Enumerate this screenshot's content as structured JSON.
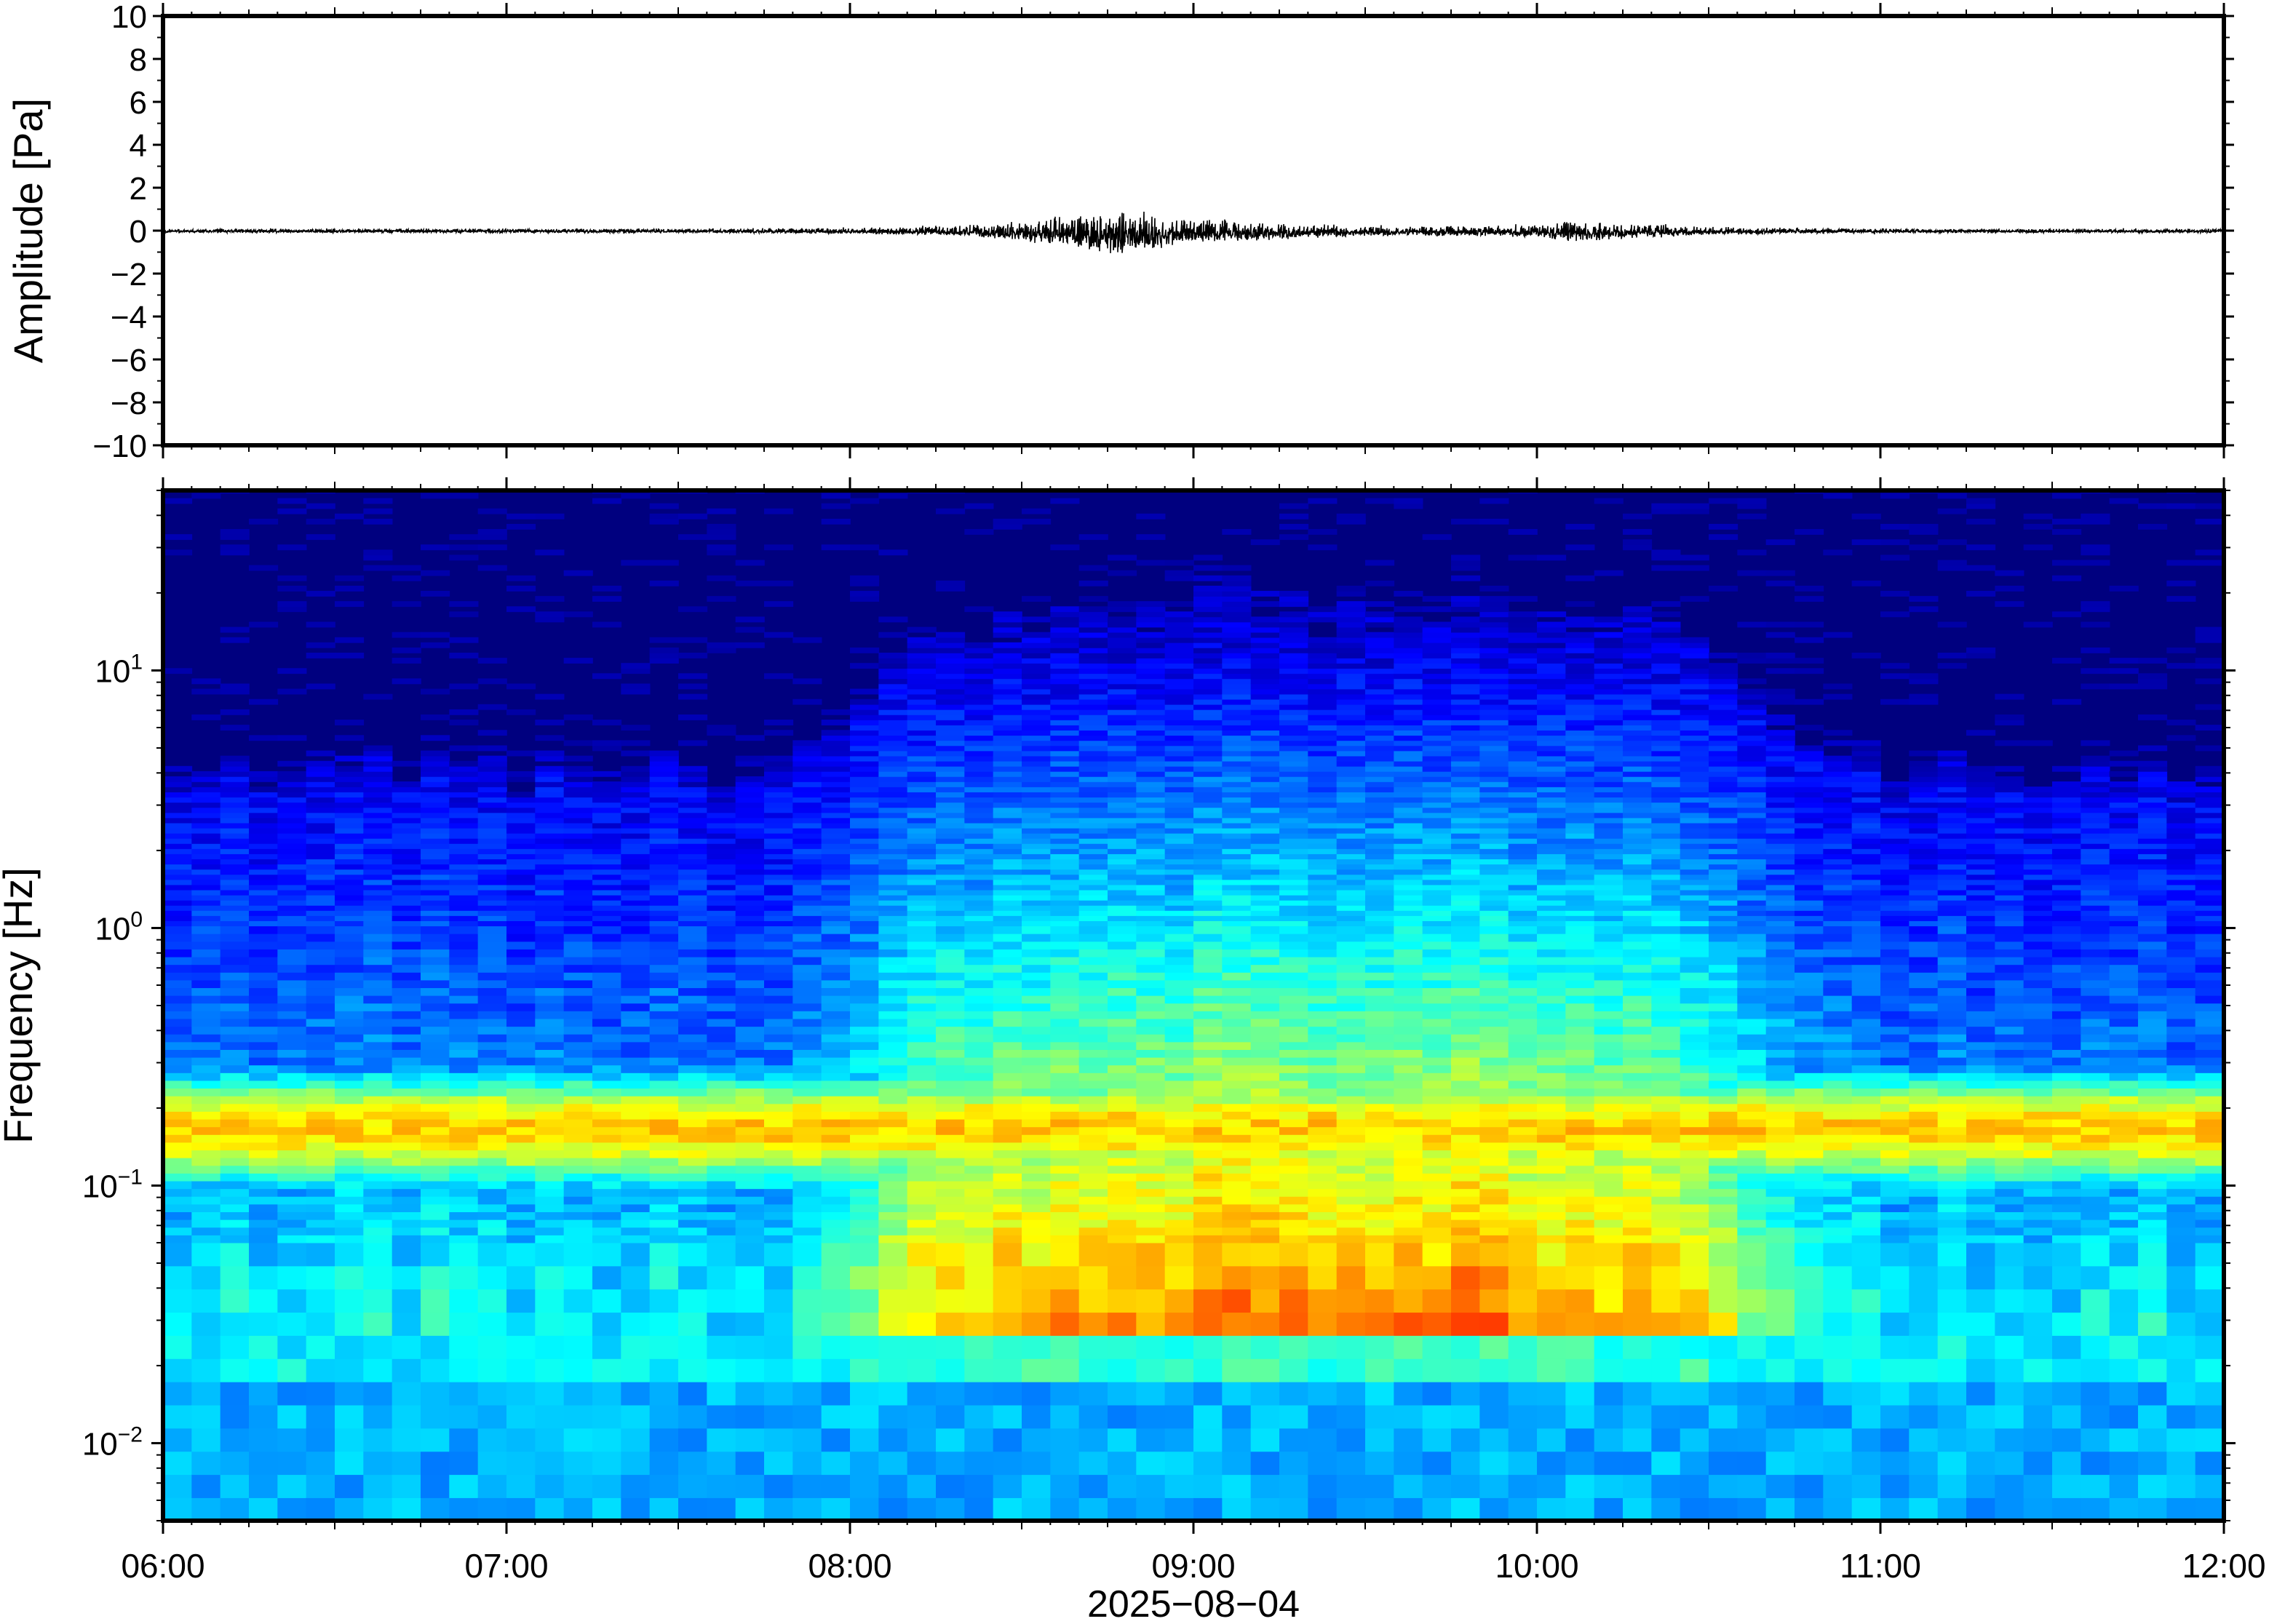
{
  "chart_data": [
    {
      "type": "line",
      "ylabel": "Amplitude [Pa]",
      "ylim": [
        -10,
        10
      ],
      "yticks": [
        10,
        8,
        6,
        4,
        2,
        0,
        -2,
        -4,
        -6,
        -8,
        -10
      ],
      "ytick_labels": [
        "10",
        "8",
        "6",
        "4",
        "2",
        "0",
        "−2",
        "−4",
        "−6",
        "−8",
        "−10"
      ],
      "xlim": [
        "06:00",
        "12:00"
      ],
      "series": [
        {
          "x": [
            "06:00",
            "06:30",
            "07:00",
            "07:30",
            "08:00",
            "08:15",
            "08:30",
            "08:40",
            "08:45",
            "08:50",
            "09:00",
            "09:10",
            "09:30",
            "10:00",
            "10:05",
            "10:30",
            "11:00",
            "11:30",
            "12:00"
          ],
          "envelope": [
            0.08,
            0.08,
            0.08,
            0.08,
            0.12,
            0.18,
            0.35,
            0.7,
            0.9,
            0.8,
            0.45,
            0.35,
            0.2,
            0.22,
            0.4,
            0.15,
            0.08,
            0.08,
            0.08
          ]
        }
      ],
      "color": "#000000",
      "grid": false
    },
    {
      "type": "heatmap",
      "ylabel": "Frequency [Hz]",
      "yscale": "log",
      "ylim": [
        0.005,
        50
      ],
      "yticks": [
        0.01,
        0.1,
        1,
        10
      ],
      "ytick_labels": [
        {
          "base": "10",
          "exp": "−2"
        },
        {
          "base": "10",
          "exp": "−1"
        },
        {
          "base": "10",
          "exp": "0"
        },
        {
          "base": "10",
          "exp": "1"
        }
      ],
      "xlim": [
        "06:00",
        "12:00"
      ],
      "colormap": "jet",
      "colormap_stops": [
        "#00007f",
        "#0000ff",
        "#007fff",
        "#00ffff",
        "#7fff7f",
        "#ffff00",
        "#ff7f00",
        "#ff0000"
      ],
      "features": {
        "microseism_band_hz": 0.17,
        "active_period": [
          "08:00",
          "10:40"
        ]
      },
      "grid": false
    }
  ],
  "xaxis": {
    "tick_labels": [
      "06:00",
      "07:00",
      "08:00",
      "09:00",
      "10:00",
      "11:00",
      "12:00"
    ],
    "label": "2025−08−04"
  }
}
